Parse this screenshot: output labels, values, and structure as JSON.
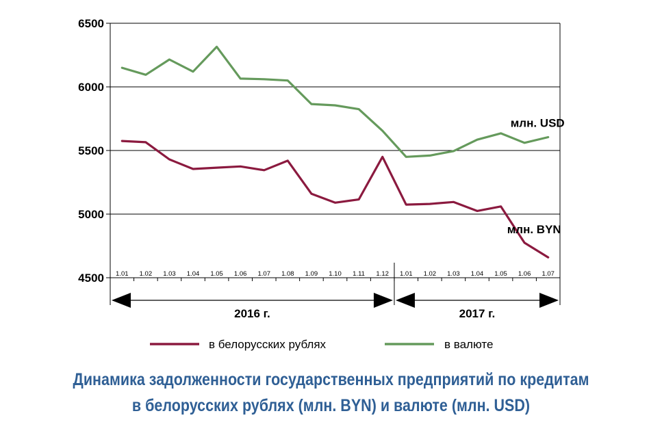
{
  "chart_data": {
    "type": "line",
    "categories": [
      "1.01",
      "1.02",
      "1.03",
      "1.04",
      "1.05",
      "1.06",
      "1.07",
      "1.08",
      "1.09",
      "1.10",
      "1.11",
      "1.12",
      "1.01",
      "1.02",
      "1.03",
      "1.04",
      "1.05",
      "1.06",
      "1.07"
    ],
    "series": [
      {
        "name": "в белорусских рублях",
        "color": "#8b1a3f",
        "end_label": "млн. BYN",
        "values": [
          5575,
          5565,
          5430,
          5355,
          5365,
          5375,
          5345,
          5420,
          5160,
          5090,
          5115,
          5450,
          5075,
          5080,
          5095,
          5025,
          5060,
          4775,
          4660
        ]
      },
      {
        "name": "в валюте",
        "color": "#659a5c",
        "end_label": "млн. USD",
        "values": [
          6150,
          6095,
          6215,
          6120,
          6315,
          6065,
          6060,
          6050,
          5865,
          5855,
          5825,
          5655,
          5450,
          5460,
          5495,
          5585,
          5635,
          5560,
          5605
        ]
      }
    ],
    "y_ticks": [
      "6500",
      "6000",
      "5500",
      "5000",
      "4500"
    ],
    "ylim": [
      4500,
      6500
    ],
    "grid": true,
    "legend_position": "bottom",
    "periods": [
      {
        "label": "2016 г.",
        "start_index": 0,
        "end_index": 11
      },
      {
        "label": "2017 г.",
        "start_index": 12,
        "end_index": 18
      }
    ],
    "title_lines": [
      "Динамика задолженности государственных предприятий по кредитам",
      "в белорусских рублях (млн. BYN) и валюте (млн. USD)"
    ],
    "title_color": "#2f5f95"
  }
}
